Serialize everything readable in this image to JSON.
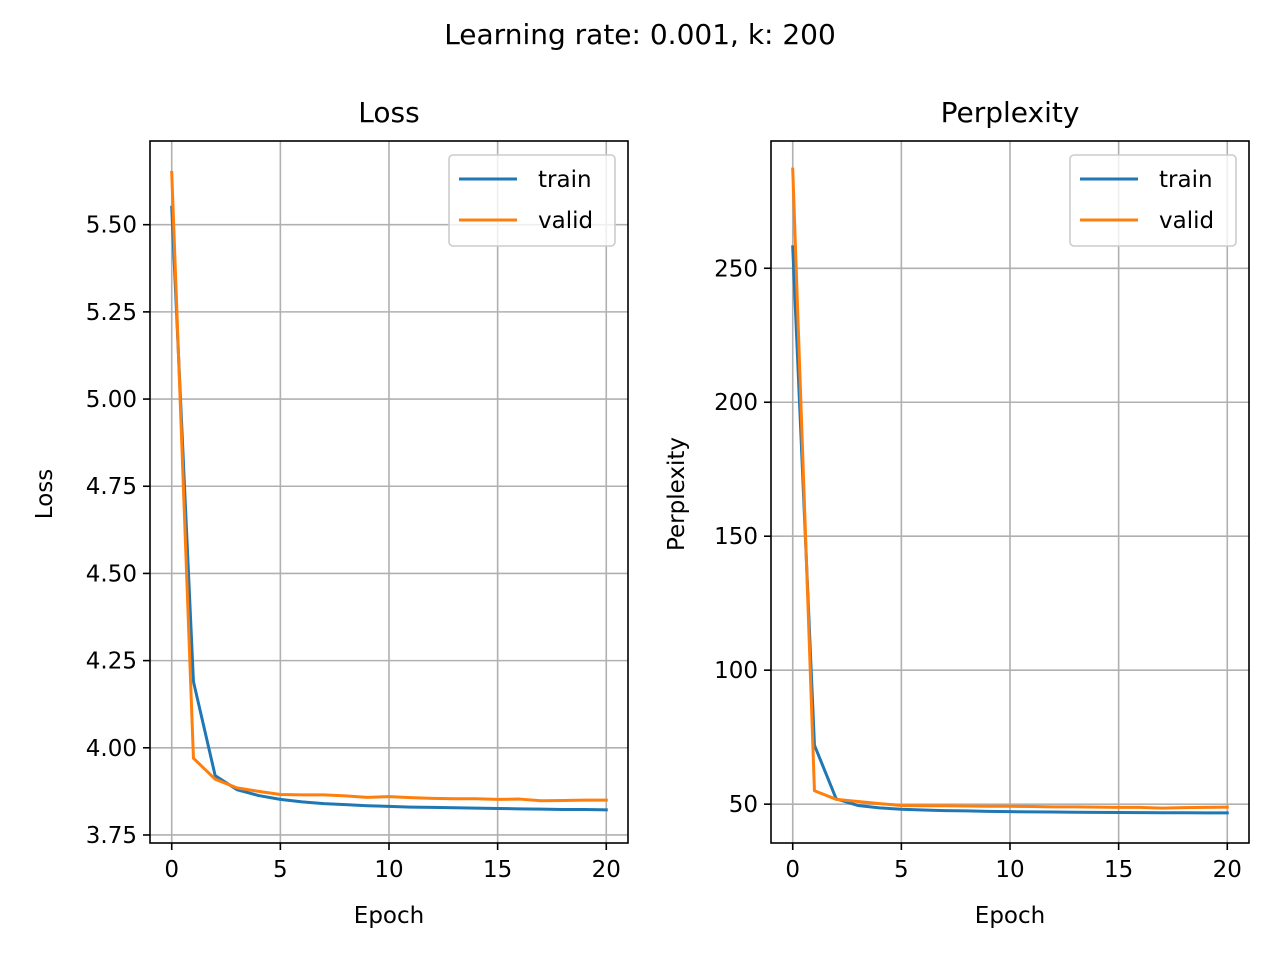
{
  "figure": {
    "suptitle": "Learning rate: 0.001, k: 200"
  },
  "colors": {
    "train": "#1f77b4",
    "valid": "#ff7f0e"
  },
  "chart_data": [
    {
      "type": "line",
      "title": "Loss",
      "xlabel": "Epoch",
      "ylabel": "Loss",
      "xlim": [
        -1,
        21
      ],
      "ylim": [
        3.727,
        5.74
      ],
      "xticks": [
        0,
        5,
        10,
        15,
        20
      ],
      "xtick_labels": [
        "0",
        "5",
        "10",
        "15",
        "20"
      ],
      "yticks": [
        3.75,
        4.0,
        4.25,
        4.5,
        4.75,
        5.0,
        5.25,
        5.5
      ],
      "ytick_labels": [
        "3.75",
        "4.00",
        "4.25",
        "4.50",
        "4.75",
        "5.00",
        "5.25",
        "5.50"
      ],
      "grid": true,
      "legend_position": "top-right",
      "x": [
        0,
        1,
        2,
        3,
        4,
        5,
        6,
        7,
        8,
        9,
        10,
        11,
        12,
        13,
        14,
        15,
        16,
        17,
        18,
        19,
        20
      ],
      "series": [
        {
          "name": "train",
          "color": "#1f77b4",
          "values": [
            5.55,
            4.19,
            3.92,
            3.88,
            3.863,
            3.852,
            3.845,
            3.84,
            3.837,
            3.834,
            3.832,
            3.83,
            3.829,
            3.828,
            3.827,
            3.826,
            3.825,
            3.824,
            3.823,
            3.823,
            3.822
          ]
        },
        {
          "name": "valid",
          "color": "#ff7f0e",
          "values": [
            5.65,
            3.97,
            3.91,
            3.885,
            3.875,
            3.866,
            3.865,
            3.865,
            3.862,
            3.858,
            3.86,
            3.857,
            3.855,
            3.854,
            3.854,
            3.852,
            3.853,
            3.848,
            3.849,
            3.85,
            3.85
          ]
        }
      ]
    },
    {
      "type": "line",
      "title": "Perplexity",
      "xlabel": "Epoch",
      "ylabel": "Perplexity",
      "xlim": [
        -1,
        21
      ],
      "ylim": [
        35.5,
        297.5
      ],
      "xticks": [
        0,
        5,
        10,
        15,
        20
      ],
      "xtick_labels": [
        "0",
        "5",
        "10",
        "15",
        "20"
      ],
      "yticks": [
        50,
        100,
        150,
        200,
        250
      ],
      "ytick_labels": [
        "50",
        "100",
        "150",
        "200",
        "250"
      ],
      "grid": true,
      "legend_position": "top-right",
      "x": [
        0,
        1,
        2,
        3,
        4,
        5,
        6,
        7,
        8,
        9,
        10,
        11,
        12,
        13,
        14,
        15,
        16,
        17,
        18,
        19,
        20
      ],
      "series": [
        {
          "name": "train",
          "color": "#1f77b4",
          "values": [
            258,
            72,
            52,
            49.5,
            48.6,
            48.1,
            47.8,
            47.6,
            47.5,
            47.3,
            47.2,
            47.1,
            47.05,
            47.0,
            46.95,
            46.9,
            46.85,
            46.8,
            46.78,
            46.76,
            46.75
          ]
        },
        {
          "name": "valid",
          "color": "#ff7f0e",
          "values": [
            287,
            55,
            51.8,
            51,
            50.2,
            49.5,
            49.4,
            49.4,
            49.3,
            49.2,
            49.2,
            49.1,
            49.0,
            49.0,
            48.9,
            48.8,
            48.8,
            48.5,
            48.7,
            48.8,
            48.9
          ]
        }
      ]
    }
  ]
}
